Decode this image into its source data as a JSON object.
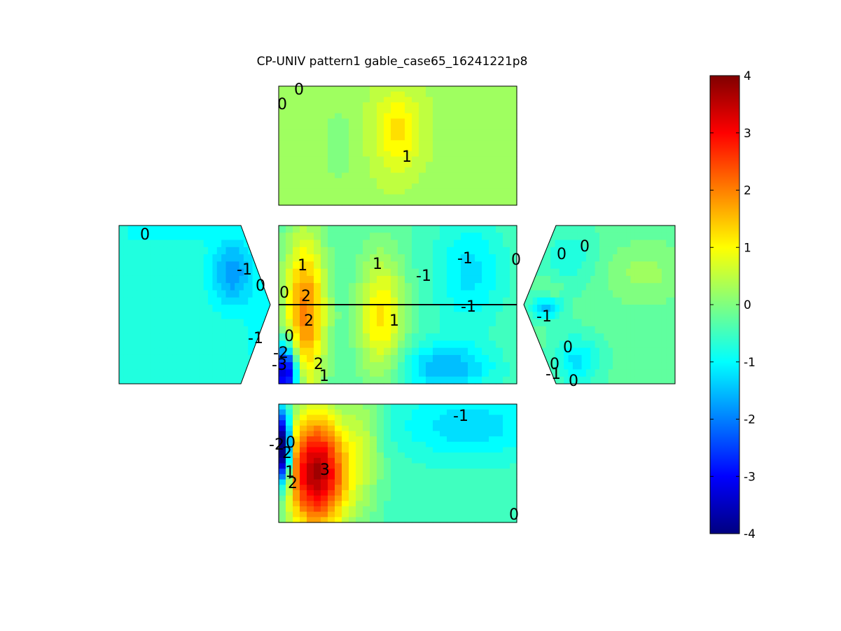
{
  "chart_data": {
    "type": "contour",
    "title": "CP-UNIV pattern1 gable_case65_16241221p8",
    "colorbar": {
      "min": -4,
      "max": 4,
      "ticks": [
        "-4",
        "-3",
        "-2",
        "-1",
        "0",
        "1",
        "2",
        "3",
        "4"
      ],
      "colormap": "jet"
    },
    "panels": [
      {
        "name": "top",
        "base": 0.3,
        "contour_labels": [
          "0",
          "0",
          "1"
        ],
        "features": [
          {
            "cx": 0.5,
            "cy": 0.38,
            "rx": 0.1,
            "ry": 0.34,
            "v": 0.9
          },
          {
            "cx": 0.25,
            "cy": 0.5,
            "rx": 0.08,
            "ry": 0.35,
            "v": -0.3
          },
          {
            "cx": 0.9,
            "cy": 0.85,
            "rx": 0.25,
            "ry": 0.3,
            "v": -0.1
          }
        ]
      },
      {
        "name": "left",
        "base": -0.7,
        "contour_labels": [
          "0",
          "-1",
          "0",
          "-1"
        ],
        "features": [
          {
            "cx": 0.75,
            "cy": 0.3,
            "rx": 0.14,
            "ry": 0.22,
            "v": -1.1
          },
          {
            "cx": 0.3,
            "cy": 0.05,
            "rx": 0.35,
            "ry": 0.08,
            "v": -0.3
          },
          {
            "cx": 0.95,
            "cy": 0.7,
            "rx": 0.1,
            "ry": 0.3,
            "v": -0.4
          }
        ]
      },
      {
        "name": "center",
        "base": -0.4,
        "contour_labels": [
          "1",
          "1",
          "-1",
          "-1",
          "0",
          "0",
          "2",
          "2",
          "-1",
          "1",
          "0",
          "-2",
          "-3",
          "2",
          "1"
        ],
        "features": [
          {
            "cx": 0.11,
            "cy": 0.55,
            "rx": 0.09,
            "ry": 0.5,
            "v": 2.4
          },
          {
            "cx": 0.43,
            "cy": 0.58,
            "rx": 0.1,
            "ry": 0.4,
            "v": 1.6
          },
          {
            "cx": 0.03,
            "cy": 0.92,
            "rx": 0.05,
            "ry": 0.18,
            "v": -3.6
          },
          {
            "cx": 0.7,
            "cy": 0.9,
            "rx": 0.2,
            "ry": 0.15,
            "v": -1.2
          },
          {
            "cx": 0.8,
            "cy": 0.3,
            "rx": 0.15,
            "ry": 0.35,
            "v": -0.8
          }
        ]
      },
      {
        "name": "right",
        "base": -0.3,
        "contour_labels": [
          "0",
          "0",
          "-1",
          "0",
          "-1",
          "0",
          "0"
        ],
        "features": [
          {
            "cx": 0.8,
            "cy": 0.3,
            "rx": 0.3,
            "ry": 0.2,
            "v": 0.5
          },
          {
            "cx": 0.15,
            "cy": 0.52,
            "rx": 0.1,
            "ry": 0.08,
            "v": -1.1
          },
          {
            "cx": 0.18,
            "cy": 0.4,
            "rx": 0.08,
            "ry": 0.06,
            "v": 0.4
          },
          {
            "cx": 0.35,
            "cy": 0.85,
            "rx": 0.15,
            "ry": 0.15,
            "v": -0.9
          },
          {
            "cx": 0.3,
            "cy": 0.2,
            "rx": 0.2,
            "ry": 0.2,
            "v": -0.5
          }
        ]
      },
      {
        "name": "bottom",
        "base": -0.5,
        "contour_labels": [
          "-1",
          "0",
          "-2",
          "2",
          "1",
          "2",
          "3",
          "0"
        ],
        "features": [
          {
            "cx": 0.16,
            "cy": 0.58,
            "rx": 0.13,
            "ry": 0.5,
            "v": 4.2
          },
          {
            "cx": 0.02,
            "cy": 0.38,
            "rx": 0.03,
            "ry": 0.3,
            "v": -5.0
          },
          {
            "cx": 0.36,
            "cy": 0.35,
            "rx": 0.08,
            "ry": 0.6,
            "v": 0.8
          },
          {
            "cx": 0.8,
            "cy": 0.18,
            "rx": 0.3,
            "ry": 0.28,
            "v": -0.8
          }
        ]
      }
    ]
  }
}
